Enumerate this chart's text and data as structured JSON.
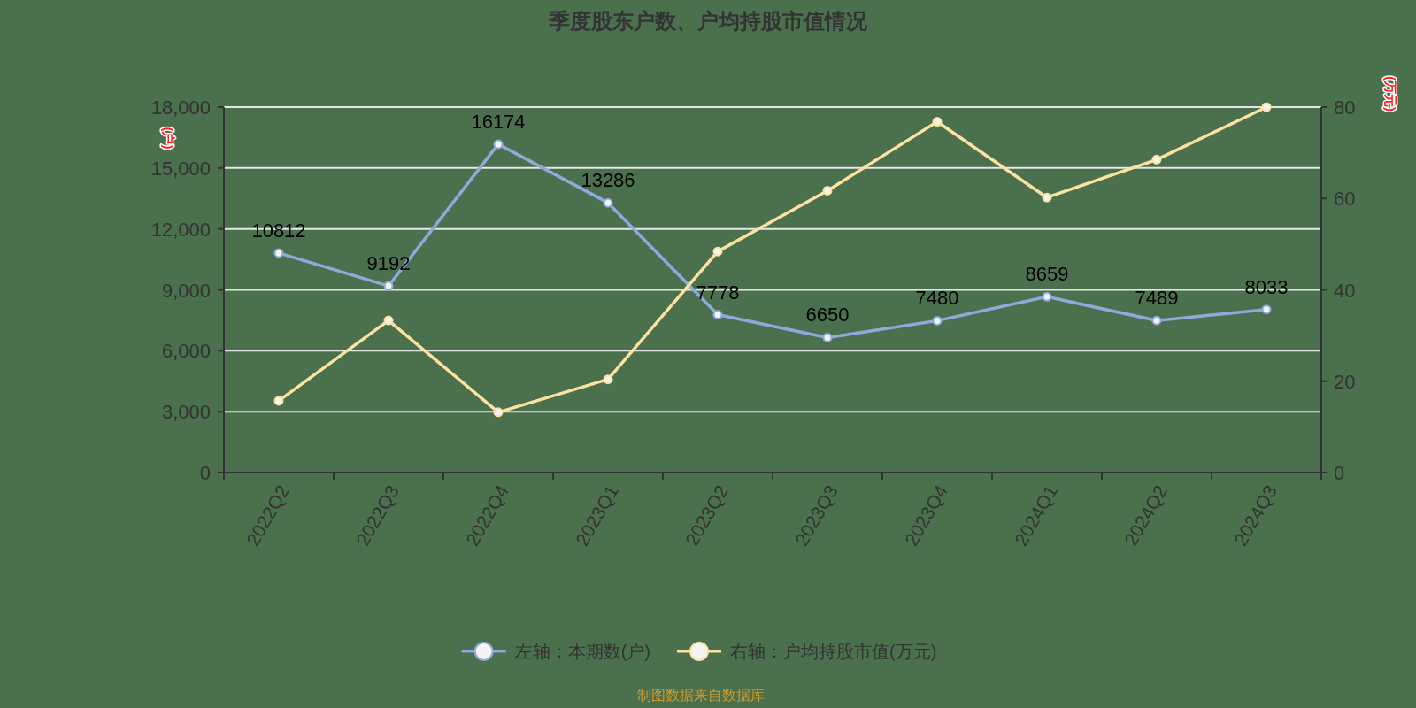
{
  "chart_data": {
    "type": "line",
    "title": "季度股东户数、户均持股市值情况",
    "ylabel": "(户)",
    "y2label": "(万元)",
    "categories": [
      "2022Q2",
      "2022Q3",
      "2022Q4",
      "2023Q1",
      "2023Q2",
      "2023Q3",
      "2023Q4",
      "2024Q1",
      "2024Q2",
      "2024Q3"
    ],
    "series": [
      {
        "name": "左轴：本期数(户)",
        "color": "#8eaadb",
        "values": [
          10812,
          9192,
          16174,
          13286,
          7778,
          6650,
          7480,
          8659,
          7489,
          8033
        ],
        "value_labels": [
          "10812",
          "9192",
          "16174",
          "13286",
          "7778",
          "6650",
          "7480",
          "8659",
          "7489",
          "8033"
        ]
      },
      {
        "name": "右轴：户均持股市值(万元)",
        "color": "#fbe2a0",
        "axis": "y2",
        "values": [
          15.7,
          33.3,
          13.2,
          20.4,
          48.4,
          61.7,
          76.8,
          60.2,
          68.5,
          80
        ]
      }
    ],
    "ylim": [
      0,
      18000
    ],
    "yticks": [
      0,
      {
        "value": 3000,
        "label": "3,000"
      },
      {
        "value": 6000,
        "label": "6,000"
      },
      {
        "value": 9000,
        "label": "9,000"
      },
      {
        "value": 12000,
        "label": "12,000"
      },
      {
        "value": 15000,
        "label": "15,000"
      },
      {
        "value": 18000,
        "label": "18,000"
      }
    ],
    "y2lim": [
      0,
      80
    ],
    "y2ticks": [
      0,
      20,
      40,
      60,
      80
    ],
    "grid": "y",
    "legend": "bottom",
    "marker": "circle",
    "annotations": [
      "制图数据来自数据库"
    ]
  }
}
